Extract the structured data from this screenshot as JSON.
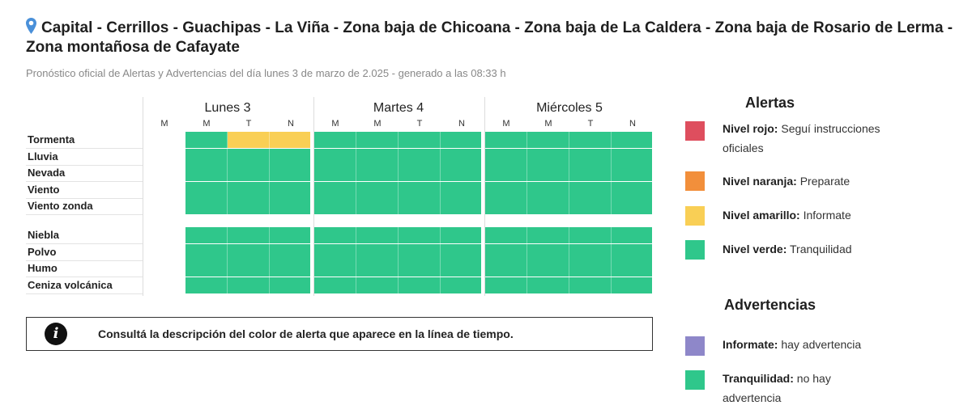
{
  "header": {
    "title": "Capital - Cerrillos - Guachipas - La Viña - Zona baja de Chicoana - Zona baja de La Caldera - Zona baja de Rosario de Lerma - Zona montañosa de Cafayate",
    "subtitle": "Pronóstico oficial de Alertas y Advertencias del día lunes 3 de marzo de 2.025 - generado a las 08:33 h",
    "icon": "location-pin-icon"
  },
  "timeline": {
    "days": [
      "Lunes 3",
      "Martes 4",
      "Miércoles 5"
    ],
    "slots": [
      "M",
      "M",
      "T",
      "N",
      "M",
      "M",
      "T",
      "N",
      "M",
      "M",
      "T",
      "N"
    ],
    "rows": [
      {
        "label": "Tormenta",
        "levels": [
          null,
          "verde",
          "amarillo",
          "amarillo",
          "verde",
          "verde",
          "verde",
          "verde",
          "verde",
          "verde",
          "verde",
          "verde"
        ]
      },
      {
        "label": "Lluvia",
        "levels": [
          null,
          "verde",
          "verde",
          "verde",
          "verde",
          "verde",
          "verde",
          "verde",
          "verde",
          "verde",
          "verde",
          "verde"
        ]
      },
      {
        "label": "Nevada",
        "levels": [
          null,
          "verde",
          "verde",
          "verde",
          "verde",
          "verde",
          "verde",
          "verde",
          "verde",
          "verde",
          "verde",
          "verde"
        ]
      },
      {
        "label": "Viento",
        "levels": [
          null,
          "verde",
          "verde",
          "verde",
          "verde",
          "verde",
          "verde",
          "verde",
          "verde",
          "verde",
          "verde",
          "verde"
        ]
      },
      {
        "label": "Viento zonda",
        "levels": [
          null,
          "verde",
          "verde",
          "verde",
          "verde",
          "verde",
          "verde",
          "verde",
          "verde",
          "verde",
          "verde",
          "verde"
        ]
      },
      {
        "label": "Niebla",
        "levels": [
          null,
          "verde",
          "verde",
          "verde",
          "verde",
          "verde",
          "verde",
          "verde",
          "verde",
          "verde",
          "verde",
          "verde"
        ]
      },
      {
        "label": "Polvo",
        "levels": [
          null,
          "verde",
          "verde",
          "verde",
          "verde",
          "verde",
          "verde",
          "verde",
          "verde",
          "verde",
          "verde",
          "verde"
        ]
      },
      {
        "label": "Humo",
        "levels": [
          null,
          "verde",
          "verde",
          "verde",
          "verde",
          "verde",
          "verde",
          "verde",
          "verde",
          "verde",
          "verde",
          "verde"
        ]
      },
      {
        "label": "Ceniza volcánica",
        "levels": [
          null,
          "verde",
          "verde",
          "verde",
          "verde",
          "verde",
          "verde",
          "verde",
          "verde",
          "verde",
          "verde",
          "verde"
        ]
      }
    ]
  },
  "info": {
    "icon": "info-icon",
    "text": "Consultá la descripción del color de alerta que aparece en la línea de tiempo."
  },
  "legend": {
    "alertas_title": "Alertas",
    "alertas": [
      {
        "name": "Nivel rojo:",
        "desc": "Seguí instrucciones oficiales",
        "color": "#de4e5e"
      },
      {
        "name": "Nivel naranja:",
        "desc": "Preparate",
        "color": "#f28f3b"
      },
      {
        "name": "Nivel amarillo:",
        "desc": "Informate",
        "color": "#f9cf55"
      },
      {
        "name": "Nivel verde:",
        "desc": "Tranquilidad",
        "color": "#2fc78b"
      }
    ],
    "advertencias_title": "Advertencias",
    "advertencias": [
      {
        "name": "Informate:",
        "desc": "hay advertencia",
        "color": "#8e87c9"
      },
      {
        "name": "Tranquilidad:",
        "desc": "no hay advertencia",
        "color": "#2fc78b"
      }
    ]
  },
  "colors": {
    "verde": "#2fc78b",
    "amarillo": "#f9cf55"
  }
}
